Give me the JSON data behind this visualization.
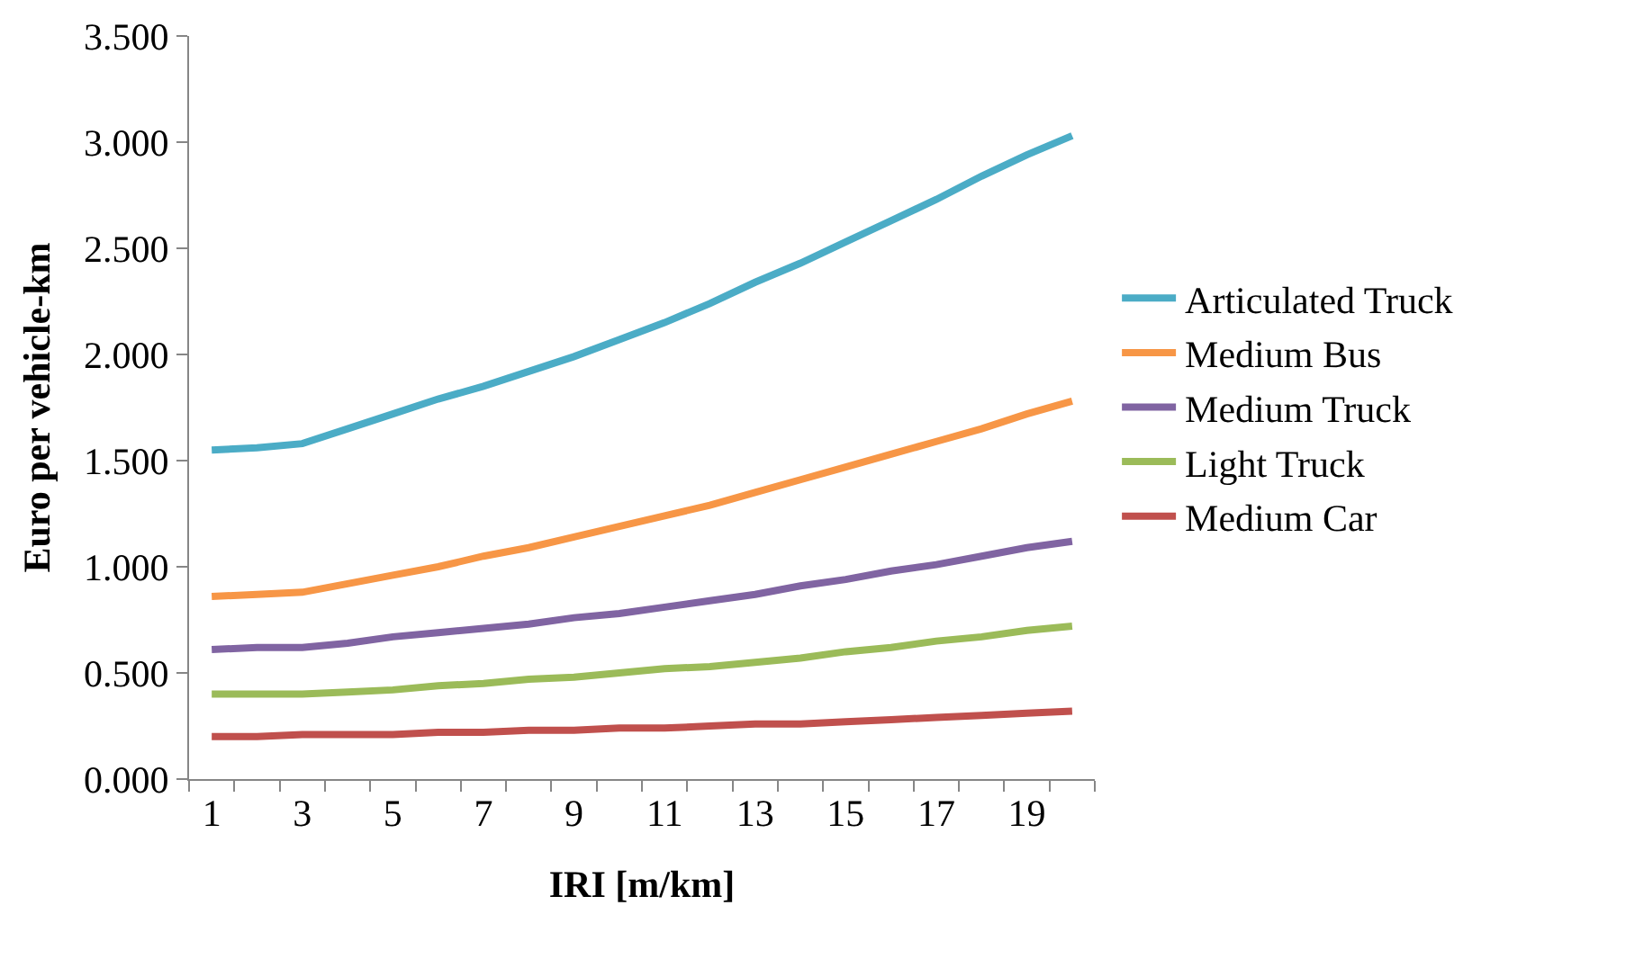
{
  "chart_data": {
    "type": "line",
    "xlabel": "IRI [m/km]",
    "ylabel": "Euro per vehicle-km",
    "x": [
      1,
      2,
      3,
      4,
      5,
      6,
      7,
      8,
      9,
      10,
      11,
      12,
      13,
      14,
      15,
      16,
      17,
      18,
      19,
      20
    ],
    "xlim": [
      0.5,
      20.5
    ],
    "xticks": [
      1,
      3,
      5,
      7,
      9,
      11,
      13,
      15,
      17,
      19
    ],
    "series": [
      {
        "name": "Articulated Truck",
        "color": "#4bacc6",
        "values": [
          1.55,
          1.56,
          1.58,
          1.65,
          1.72,
          1.79,
          1.85,
          1.92,
          1.99,
          2.07,
          2.15,
          2.24,
          2.34,
          2.43,
          2.53,
          2.63,
          2.73,
          2.84,
          2.94,
          3.03
        ]
      },
      {
        "name": "Medium Bus",
        "color": "#f79646",
        "values": [
          0.86,
          0.87,
          0.88,
          0.92,
          0.96,
          1.0,
          1.05,
          1.09,
          1.14,
          1.19,
          1.24,
          1.29,
          1.35,
          1.41,
          1.47,
          1.53,
          1.59,
          1.65,
          1.72,
          1.78
        ]
      },
      {
        "name": "Medium Truck",
        "color": "#8064a2",
        "values": [
          0.61,
          0.62,
          0.62,
          0.64,
          0.67,
          0.69,
          0.71,
          0.73,
          0.76,
          0.78,
          0.81,
          0.84,
          0.87,
          0.91,
          0.94,
          0.98,
          1.01,
          1.05,
          1.09,
          1.12
        ]
      },
      {
        "name": "Light Truck",
        "color": "#9bbb59",
        "values": [
          0.4,
          0.4,
          0.4,
          0.41,
          0.42,
          0.44,
          0.45,
          0.47,
          0.48,
          0.5,
          0.52,
          0.53,
          0.55,
          0.57,
          0.6,
          0.62,
          0.65,
          0.67,
          0.7,
          0.72
        ]
      },
      {
        "name": "Medium Car",
        "color": "#c0504d",
        "values": [
          0.2,
          0.2,
          0.21,
          0.21,
          0.21,
          0.22,
          0.22,
          0.23,
          0.23,
          0.24,
          0.24,
          0.25,
          0.26,
          0.26,
          0.27,
          0.28,
          0.29,
          0.3,
          0.31,
          0.32
        ]
      }
    ],
    "ylim": [
      0,
      3.5
    ],
    "yticks": [
      {
        "value": 0,
        "label": "0.000"
      },
      {
        "value": 0.5,
        "label": "0.500"
      },
      {
        "value": 1,
        "label": "1.000"
      },
      {
        "value": 1.5,
        "label": "1.500"
      },
      {
        "value": 2,
        "label": "2.000"
      },
      {
        "value": 2.5,
        "label": "2.500"
      },
      {
        "value": 3,
        "label": "3.000"
      },
      {
        "value": 3.5,
        "label": "3.500"
      }
    ],
    "grid": false,
    "legend": "right",
    "marker": "none",
    "line_style": "solid"
  }
}
